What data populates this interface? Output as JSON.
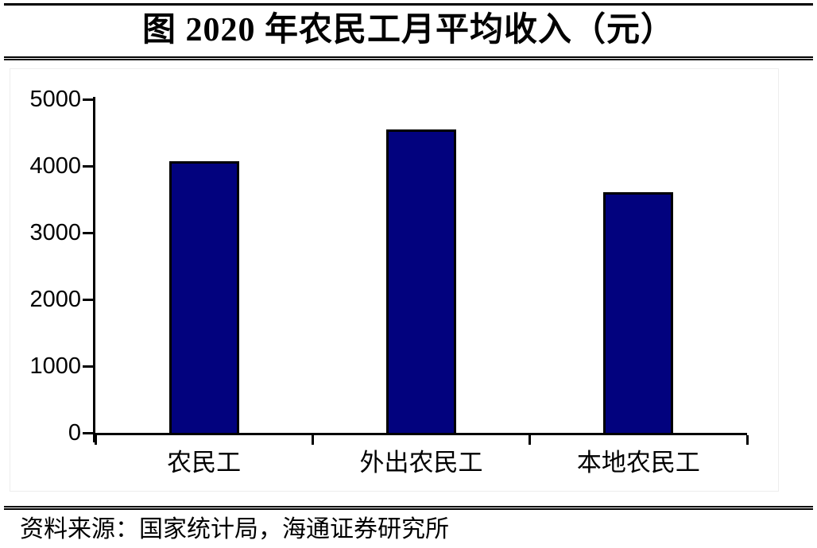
{
  "header": {
    "title": "图  2020 年农民工月平均收入（元）"
  },
  "footer": {
    "source": "资料来源：国家统计局，海通证券研究所"
  },
  "colors": {
    "bar_fill": "#02027e",
    "bar_border": "#000000",
    "axis": "#000000",
    "text": "#000000",
    "frame": "#ededed",
    "background": "#ffffff"
  },
  "chart_data": {
    "type": "bar",
    "title": "图  2020 年农民工月平均收入（元）",
    "categories": [
      "农民工",
      "外出农民工",
      "本地农民工"
    ],
    "values": [
      4072,
      4549,
      3606
    ],
    "xlabel": "",
    "ylabel": "",
    "ylim": [
      0,
      5000
    ],
    "yticks": [
      0,
      1000,
      2000,
      3000,
      4000,
      5000
    ],
    "grid": false,
    "legend": null,
    "bar_color": "#02027e",
    "bar_border_color": "#000000"
  }
}
